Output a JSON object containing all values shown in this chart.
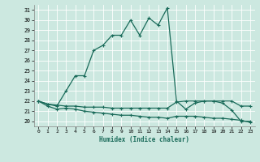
{
  "xlabel": "Humidex (Indice chaleur)",
  "bg_color": "#cce8e0",
  "line_color": "#1a6b5a",
  "xlim": [
    -0.5,
    23.5
  ],
  "ylim": [
    19.5,
    31.5
  ],
  "xticks": [
    0,
    1,
    2,
    3,
    4,
    5,
    6,
    7,
    8,
    9,
    10,
    11,
    12,
    13,
    14,
    15,
    16,
    17,
    18,
    19,
    20,
    21,
    22,
    23
  ],
  "yticks": [
    20,
    21,
    22,
    23,
    24,
    25,
    26,
    27,
    28,
    29,
    30,
    31
  ],
  "line_main_x": [
    0,
    1,
    2,
    3,
    4,
    5,
    6,
    7,
    8,
    9,
    10,
    11,
    12,
    13,
    14,
    15,
    16,
    17,
    18,
    19,
    20,
    21,
    22,
    23
  ],
  "line_main_y": [
    22.0,
    21.7,
    21.5,
    23.0,
    24.5,
    24.5,
    27.0,
    27.5,
    28.5,
    28.5,
    30.0,
    28.5,
    30.2,
    29.5,
    31.2,
    22.0,
    21.2,
    21.8,
    22.0,
    22.0,
    21.8,
    21.1,
    20.0,
    20.0
  ],
  "line_flat1_x": [
    0,
    1,
    2,
    3,
    4,
    5,
    6,
    7,
    8,
    9,
    10,
    11,
    12,
    13,
    14,
    15,
    16,
    17,
    18,
    19,
    20,
    21,
    22,
    23
  ],
  "line_flat1_y": [
    22.0,
    21.7,
    21.6,
    21.5,
    21.5,
    21.4,
    21.4,
    21.4,
    21.3,
    21.3,
    21.3,
    21.3,
    21.3,
    21.3,
    21.3,
    21.9,
    22.0,
    22.0,
    22.0,
    22.0,
    22.0,
    22.0,
    21.5,
    21.5
  ],
  "line_flat2_x": [
    0,
    1,
    2,
    3,
    4,
    5,
    6,
    7,
    8,
    9,
    10,
    11,
    12,
    13,
    14,
    15,
    16,
    17,
    18,
    19,
    20,
    21,
    22,
    23
  ],
  "line_flat2_y": [
    22.0,
    21.5,
    21.2,
    21.3,
    21.2,
    21.0,
    20.9,
    20.8,
    20.7,
    20.6,
    20.6,
    20.5,
    20.4,
    20.4,
    20.3,
    20.5,
    20.5,
    20.5,
    20.4,
    20.3,
    20.3,
    20.2,
    20.1,
    19.9
  ],
  "marker": "+"
}
